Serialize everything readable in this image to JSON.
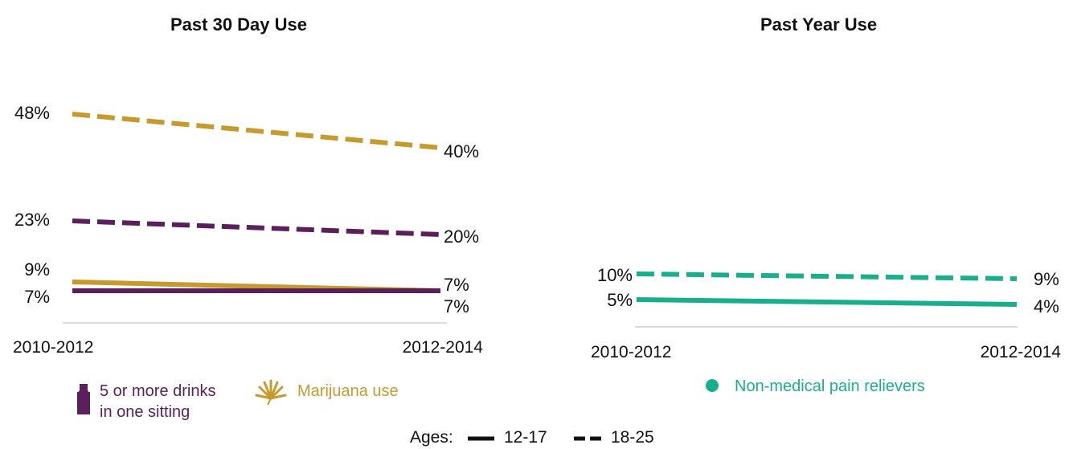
{
  "colors": {
    "drinks": "#5a1f5c",
    "marijuana": "#c79a2e",
    "pain": "#1aaf8b",
    "baseline": "#dddddd"
  },
  "legend": {
    "drinks_line1": "5 or more drinks",
    "drinks_line2": "in one sitting",
    "drinks_icon": "bottle-icon",
    "marijuana": "Marijuana use",
    "marijuana_icon": "cannabis-leaf-icon",
    "pain": "Non-medical pain relievers",
    "pain_icon": "dot-icon"
  },
  "ages": {
    "label": "Ages:",
    "solid": "12-17",
    "dashed": "18-25"
  },
  "chart_data": [
    {
      "type": "line",
      "title": "Past 30 Day Use",
      "categories": [
        "2010-2012",
        "2012-2014"
      ],
      "ylim": [
        0,
        50
      ],
      "grid": false,
      "series": [
        {
          "name": "Marijuana use",
          "age": "18-25",
          "style": "dashed",
          "values": [
            48,
            40
          ],
          "labels": [
            "48%",
            "40%"
          ]
        },
        {
          "name": "5 or more drinks in one sitting",
          "age": "18-25",
          "style": "dashed",
          "values": [
            23,
            20
          ],
          "labels": [
            "23%",
            "20%"
          ]
        },
        {
          "name": "Marijuana use",
          "age": "12-17",
          "style": "solid",
          "values": [
            9,
            7
          ],
          "labels": [
            "9%",
            "7%"
          ]
        },
        {
          "name": "5 or more drinks in one sitting",
          "age": "12-17",
          "style": "solid",
          "values": [
            7,
            7
          ],
          "labels": [
            "7%",
            "7%"
          ]
        }
      ]
    },
    {
      "type": "line",
      "title": "Past Year Use",
      "categories": [
        "2010-2012",
        "2012-2014"
      ],
      "ylim": [
        0,
        50
      ],
      "grid": false,
      "series": [
        {
          "name": "Non-medical pain relievers",
          "age": "18-25",
          "style": "dashed",
          "values": [
            10,
            9
          ],
          "labels": [
            "10%",
            "9%"
          ]
        },
        {
          "name": "Non-medical pain relievers",
          "age": "12-17",
          "style": "solid",
          "values": [
            5,
            4
          ],
          "labels": [
            "5%",
            "4%"
          ]
        }
      ]
    }
  ]
}
